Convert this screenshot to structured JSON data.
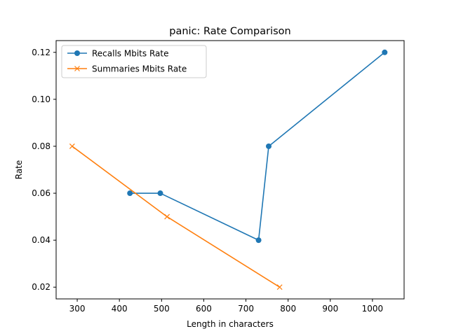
{
  "chart_data": {
    "type": "line",
    "title": "panic: Rate Comparison",
    "xlabel": "Length in characters",
    "ylabel": "Rate",
    "xlim": [
      250,
      1075
    ],
    "ylim": [
      0.015,
      0.125
    ],
    "xticks": [
      300,
      400,
      500,
      600,
      700,
      800,
      900,
      1000
    ],
    "yticks": [
      0.02,
      0.04,
      0.06,
      0.08,
      0.1,
      0.12
    ],
    "ytick_labels": [
      "0.02",
      "0.04",
      "0.06",
      "0.08",
      "0.10",
      "0.12"
    ],
    "grid": false,
    "legend_position": "top-left",
    "series": [
      {
        "name": "Recalls Mbits Rate",
        "color": "#1f77b4",
        "marker": "circle",
        "x": [
          425,
          497,
          730,
          754,
          1029
        ],
        "y": [
          0.06,
          0.06,
          0.04,
          0.08,
          0.12
        ]
      },
      {
        "name": "Summaries Mbits Rate",
        "color": "#ff7f0e",
        "marker": "x",
        "x": [
          288,
          513,
          780
        ],
        "y": [
          0.08,
          0.05,
          0.02
        ]
      }
    ]
  }
}
